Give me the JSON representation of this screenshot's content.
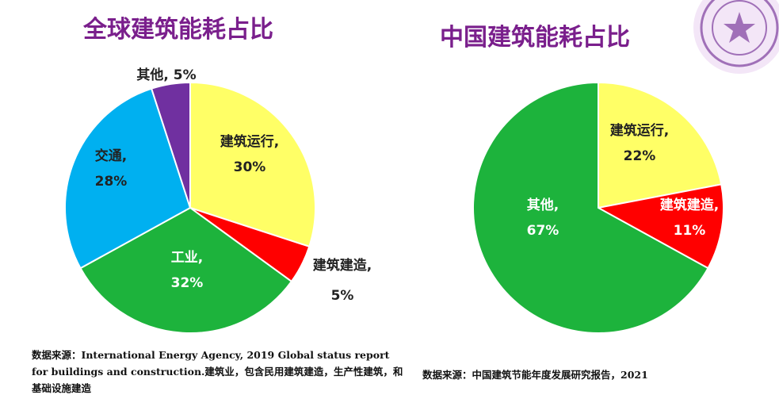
{
  "chart_data": [
    {
      "type": "pie",
      "title": "全球建筑能耗占比",
      "slices": [
        {
          "name": "建筑运行,",
          "value": 30,
          "value_label": "30%",
          "color": "#ffff66",
          "text_color": "#222222"
        },
        {
          "name": "建筑建造,",
          "value": 5,
          "value_label": "5%",
          "color": "#ff0000",
          "text_color": "#222222"
        },
        {
          "name": "工业,",
          "value": 32,
          "value_label": "32%",
          "color": "#1db33c",
          "text_color": "#ffffff"
        },
        {
          "name": "交通,",
          "value": 28,
          "value_label": "28%",
          "color": "#00b0f0",
          "text_color": "#222222"
        },
        {
          "name": "其他,",
          "value": 5,
          "value_label": "5%",
          "color": "#7030a0",
          "text_color": "#222222",
          "label_inline": true,
          "label_text": "其他, 5%"
        }
      ],
      "start_angle": "12 o'clock",
      "direction": "clockwise",
      "source": "数据来源：International Energy Agency, 2019 Global status report for buildings and construction.建筑业，包含民用建筑建造，生产性建筑，和基础设施建造"
    },
    {
      "type": "pie",
      "title": "中国建筑能耗占比",
      "slices": [
        {
          "name": "建筑运行,",
          "value": 22,
          "value_label": "22%",
          "color": "#ffff66",
          "text_color": "#222222"
        },
        {
          "name": "建筑建造,",
          "value": 11,
          "value_label": "11%",
          "color": "#ff0000",
          "text_color": "#ffffff"
        },
        {
          "name": "其他,",
          "value": 67,
          "value_label": "67%",
          "color": "#1db33c",
          "text_color": "#ffffff"
        }
      ],
      "start_angle": "12 o'clock",
      "direction": "clockwise",
      "source": "数据来源：中国建筑节能年度发展研究报告，2021"
    }
  ]
}
